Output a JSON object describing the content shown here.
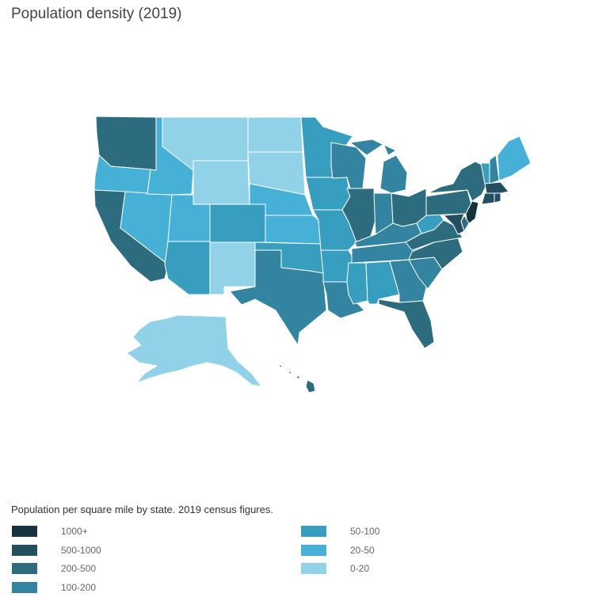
{
  "title": "Population density (2019)",
  "caption": "Population per square mile by state. 2019 census figures.",
  "legend": [
    {
      "label": "1000+",
      "color": "#17333f"
    },
    {
      "label": "500-1000",
      "color": "#244f60"
    },
    {
      "label": "200-500",
      "color": "#2d6c7f"
    },
    {
      "label": "100-200",
      "color": "#3284a0"
    },
    {
      "label": "50-100",
      "color": "#389ebf"
    },
    {
      "label": "20-50",
      "color": "#46b0d6"
    },
    {
      "label": "0-20",
      "color": "#92d2e8"
    }
  ],
  "states": [
    {
      "id": "WA",
      "bin": 2
    },
    {
      "id": "OR",
      "bin": 5
    },
    {
      "id": "CA",
      "bin": 2
    },
    {
      "id": "NV",
      "bin": 5
    },
    {
      "id": "ID",
      "bin": 5
    },
    {
      "id": "MT",
      "bin": 6
    },
    {
      "id": "WY",
      "bin": 6
    },
    {
      "id": "UT",
      "bin": 5
    },
    {
      "id": "AZ",
      "bin": 4
    },
    {
      "id": "CO",
      "bin": 4
    },
    {
      "id": "NM",
      "bin": 6
    },
    {
      "id": "ND",
      "bin": 6
    },
    {
      "id": "SD",
      "bin": 6
    },
    {
      "id": "NE",
      "bin": 5
    },
    {
      "id": "KS",
      "bin": 5
    },
    {
      "id": "OK",
      "bin": 4
    },
    {
      "id": "TX",
      "bin": 3
    },
    {
      "id": "MN",
      "bin": 4
    },
    {
      "id": "IA",
      "bin": 4
    },
    {
      "id": "MO",
      "bin": 4
    },
    {
      "id": "AR",
      "bin": 4
    },
    {
      "id": "LA",
      "bin": 3
    },
    {
      "id": "WI",
      "bin": 3
    },
    {
      "id": "IL",
      "bin": 2
    },
    {
      "id": "MI",
      "bin": 3
    },
    {
      "id": "IN",
      "bin": 3
    },
    {
      "id": "OH",
      "bin": 2
    },
    {
      "id": "KY",
      "bin": 3
    },
    {
      "id": "TN",
      "bin": 3
    },
    {
      "id": "MS",
      "bin": 4
    },
    {
      "id": "AL",
      "bin": 4
    },
    {
      "id": "GA",
      "bin": 3
    },
    {
      "id": "FL",
      "bin": 2
    },
    {
      "id": "SC",
      "bin": 3
    },
    {
      "id": "NC",
      "bin": 2
    },
    {
      "id": "VA",
      "bin": 2
    },
    {
      "id": "WV",
      "bin": 4
    },
    {
      "id": "PA",
      "bin": 2
    },
    {
      "id": "NY",
      "bin": 2
    },
    {
      "id": "VT",
      "bin": 4
    },
    {
      "id": "NH",
      "bin": 3
    },
    {
      "id": "ME",
      "bin": 5
    },
    {
      "id": "MA",
      "bin": 1
    },
    {
      "id": "CT",
      "bin": 1
    },
    {
      "id": "RI",
      "bin": 1
    },
    {
      "id": "NJ",
      "bin": 0
    },
    {
      "id": "DE",
      "bin": 2
    },
    {
      "id": "MD",
      "bin": 1
    },
    {
      "id": "AK",
      "bin": 6
    },
    {
      "id": "HI",
      "bin": 2
    }
  ]
}
